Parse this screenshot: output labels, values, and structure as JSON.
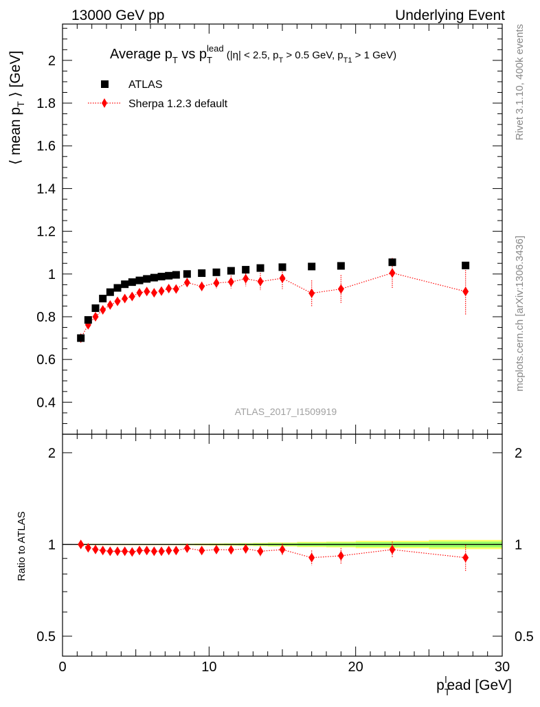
{
  "header": {
    "left": "13000 GeV pp",
    "right": "Underlying Event"
  },
  "side": {
    "top": "Rivet 3.1.10,  400k events",
    "bottom": "mcplots.cern.ch [arXiv:1306.3436]"
  },
  "colors": {
    "data": "#000000",
    "mc": "#ff0000",
    "band_outer": "#ffff66",
    "band_inner": "#99ff66",
    "watermark": "#a0a0a0",
    "side_text": "#888888"
  },
  "chart_data": [
    {
      "type": "scatter",
      "panel": "main",
      "title": "Average p_T vs p_T^lead (|η| < 2.5, p_T > 0.5 GeV, p_T1 > 1 GeV)",
      "title_parts": {
        "a": "Average p",
        "a_sub": "T",
        "b": " vs p",
        "b_sub": "T",
        "b_sup": "lead",
        "c": " (|η| < 2.5, p",
        "c_sub": "T",
        "d": " > 0.5 GeV, p",
        "d_sub": "T1",
        "e": " > 1 GeV)"
      },
      "ylabel": "⟨ mean p_T ⟩ [GeV]",
      "ylabel_parts": {
        "a": "⟨ mean p",
        "sub": "T",
        "b": " ⟩ [GeV]"
      },
      "watermark": "ATLAS_2017_I1509919",
      "xlim": [
        0,
        30
      ],
      "ylim": [
        0.25,
        2.17
      ],
      "yticks": [
        0.4,
        0.6,
        0.8,
        1.0,
        1.2,
        1.4,
        1.6,
        1.8,
        2.0
      ],
      "ytick_labels": [
        "0.4",
        "0.6",
        "0.8",
        "1",
        "1.2",
        "1.4",
        "1.6",
        "1.8",
        "2"
      ],
      "legend_position": "top-left",
      "series": [
        {
          "name": "ATLAS",
          "marker": "square",
          "x": [
            1.25,
            1.75,
            2.25,
            2.75,
            3.25,
            3.75,
            4.25,
            4.75,
            5.25,
            5.75,
            6.25,
            6.75,
            7.25,
            7.75,
            8.5,
            9.5,
            10.5,
            11.5,
            12.5,
            13.5,
            15,
            17,
            19,
            22.5,
            27.5
          ],
          "y": [
            0.7,
            0.785,
            0.84,
            0.885,
            0.915,
            0.935,
            0.952,
            0.962,
            0.97,
            0.977,
            0.983,
            0.988,
            0.992,
            0.996,
            1.0,
            1.004,
            1.008,
            1.015,
            1.02,
            1.028,
            1.032,
            1.035,
            1.038,
            1.055,
            1.04
          ]
        },
        {
          "name": "Sherpa 1.2.3 default",
          "marker": "diamond",
          "line": "dotted",
          "x": [
            1.25,
            1.75,
            2.25,
            2.75,
            3.25,
            3.75,
            4.25,
            4.75,
            5.25,
            5.75,
            6.25,
            6.75,
            7.25,
            7.75,
            8.5,
            9.5,
            10.5,
            11.5,
            12.5,
            13.5,
            15,
            17,
            19,
            22.5,
            27.5
          ],
          "y": [
            0.7,
            0.762,
            0.8,
            0.832,
            0.855,
            0.872,
            0.885,
            0.895,
            0.912,
            0.918,
            0.912,
            0.92,
            0.932,
            0.93,
            0.96,
            0.942,
            0.958,
            0.963,
            0.978,
            0.965,
            0.98,
            0.91,
            0.93,
            1.005,
            0.918
          ],
          "yerr": [
            0.008,
            0.01,
            0.01,
            0.01,
            0.01,
            0.01,
            0.012,
            0.012,
            0.012,
            0.015,
            0.015,
            0.015,
            0.018,
            0.018,
            0.02,
            0.022,
            0.025,
            0.03,
            0.035,
            0.04,
            0.05,
            0.06,
            0.065,
            0.07,
            0.11
          ]
        }
      ]
    },
    {
      "type": "scatter",
      "panel": "ratio",
      "ylabel": "Ratio to ATLAS",
      "xlabel": "p_T^lead [GeV]",
      "xlabel_parts": {
        "a": "p",
        "sub": "T",
        "sup": "l",
        "b": "ead [GeV]"
      },
      "xlim": [
        0,
        30
      ],
      "ylim": [
        0.43,
        2.3
      ],
      "log_y": true,
      "xticks": [
        0,
        10,
        20,
        30
      ],
      "xtick_labels": [
        "0",
        "10",
        "20",
        "30"
      ],
      "yticks": [
        0.5,
        1,
        2
      ],
      "ytick_labels": [
        "0.5",
        "1",
        "2"
      ],
      "series": [
        {
          "name": "Sherpa 1.2.3 default",
          "marker": "diamond",
          "line": "dotted",
          "x": [
            1.25,
            1.75,
            2.25,
            2.75,
            3.25,
            3.75,
            4.25,
            4.75,
            5.25,
            5.75,
            6.25,
            6.75,
            7.25,
            7.75,
            8.5,
            9.5,
            10.5,
            11.5,
            12.5,
            13.5,
            15,
            17,
            19,
            22.5,
            27.5
          ],
          "y": [
            1.0,
            0.975,
            0.963,
            0.955,
            0.95,
            0.95,
            0.95,
            0.945,
            0.955,
            0.955,
            0.95,
            0.95,
            0.955,
            0.955,
            0.972,
            0.955,
            0.962,
            0.96,
            0.968,
            0.95,
            0.962,
            0.905,
            0.918,
            0.962,
            0.905
          ],
          "yerr": [
            0.01,
            0.012,
            0.012,
            0.012,
            0.012,
            0.012,
            0.013,
            0.013,
            0.014,
            0.015,
            0.015,
            0.016,
            0.018,
            0.018,
            0.02,
            0.022,
            0.025,
            0.028,
            0.033,
            0.038,
            0.045,
            0.05,
            0.055,
            0.06,
            0.09
          ]
        }
      ],
      "reference_band": {
        "x": [
          1.0,
          1.5,
          2.0,
          2.5,
          3.0,
          3.5,
          4.0,
          4.5,
          5.0,
          5.5,
          6.0,
          6.5,
          7.0,
          7.5,
          8.0,
          9.0,
          10.0,
          11.0,
          12.0,
          13.0,
          14.0,
          16.0,
          18.0,
          20.0,
          25.0,
          30.0
        ],
        "inner": [
          0.003,
          0.003,
          0.003,
          0.003,
          0.003,
          0.003,
          0.003,
          0.003,
          0.003,
          0.003,
          0.003,
          0.003,
          0.003,
          0.003,
          0.004,
          0.004,
          0.005,
          0.006,
          0.007,
          0.008,
          0.01,
          0.013,
          0.015,
          0.018,
          0.022
        ],
        "outer": [
          0.005,
          0.005,
          0.005,
          0.005,
          0.005,
          0.005,
          0.005,
          0.005,
          0.005,
          0.005,
          0.005,
          0.005,
          0.005,
          0.005,
          0.006,
          0.007,
          0.008,
          0.009,
          0.01,
          0.012,
          0.015,
          0.02,
          0.022,
          0.028,
          0.035
        ]
      }
    }
  ]
}
